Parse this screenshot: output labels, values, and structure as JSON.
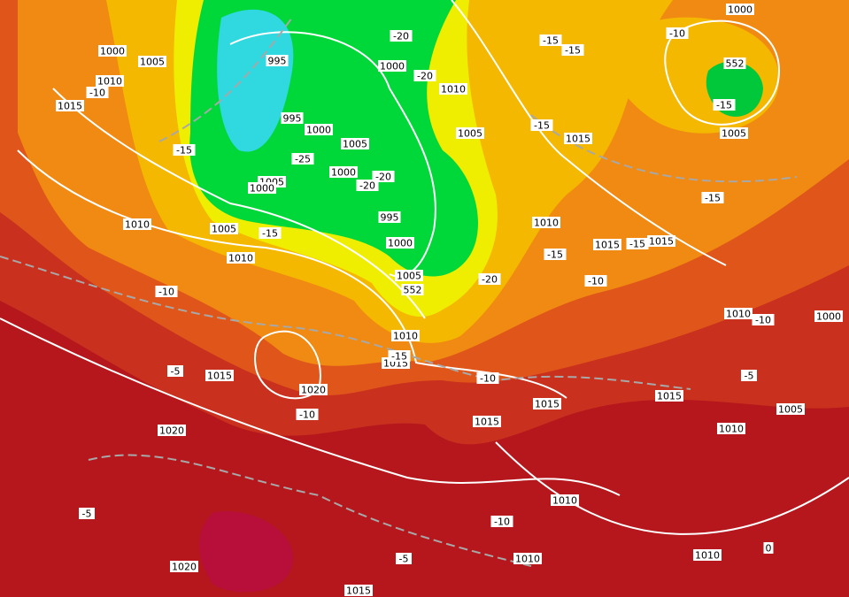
{
  "isobar_labels": [
    "1000",
    "1010",
    "1005",
    "1015",
    "995",
    "995",
    "1000",
    "1005",
    "1000",
    "1005",
    "1000",
    "995",
    "1000",
    "1005",
    "1010",
    "1005",
    "1010",
    "1010",
    "1015",
    "1015",
    "1020",
    "1020",
    "1020",
    "1015",
    "1000",
    "1010",
    "1005",
    "1015",
    "1010",
    "1015",
    "1015",
    "1000",
    "1005",
    "1010",
    "1000",
    "1015",
    "1005",
    "1010",
    "1015",
    "1015",
    "1010",
    "1010",
    "1010"
  ],
  "temperature_labels": [
    "-10",
    "-15",
    "-25",
    "-20",
    "-20",
    "-20",
    "-20",
    "-15",
    "-10",
    "552",
    "-20",
    "-15",
    "-15",
    "-10",
    "552",
    "-15",
    "-15",
    "-15",
    "-15",
    "-15",
    "-10",
    "-10",
    "-10",
    "-15",
    "-10",
    "-5",
    "-5",
    "-10",
    "-5",
    "-5",
    "0"
  ]
}
